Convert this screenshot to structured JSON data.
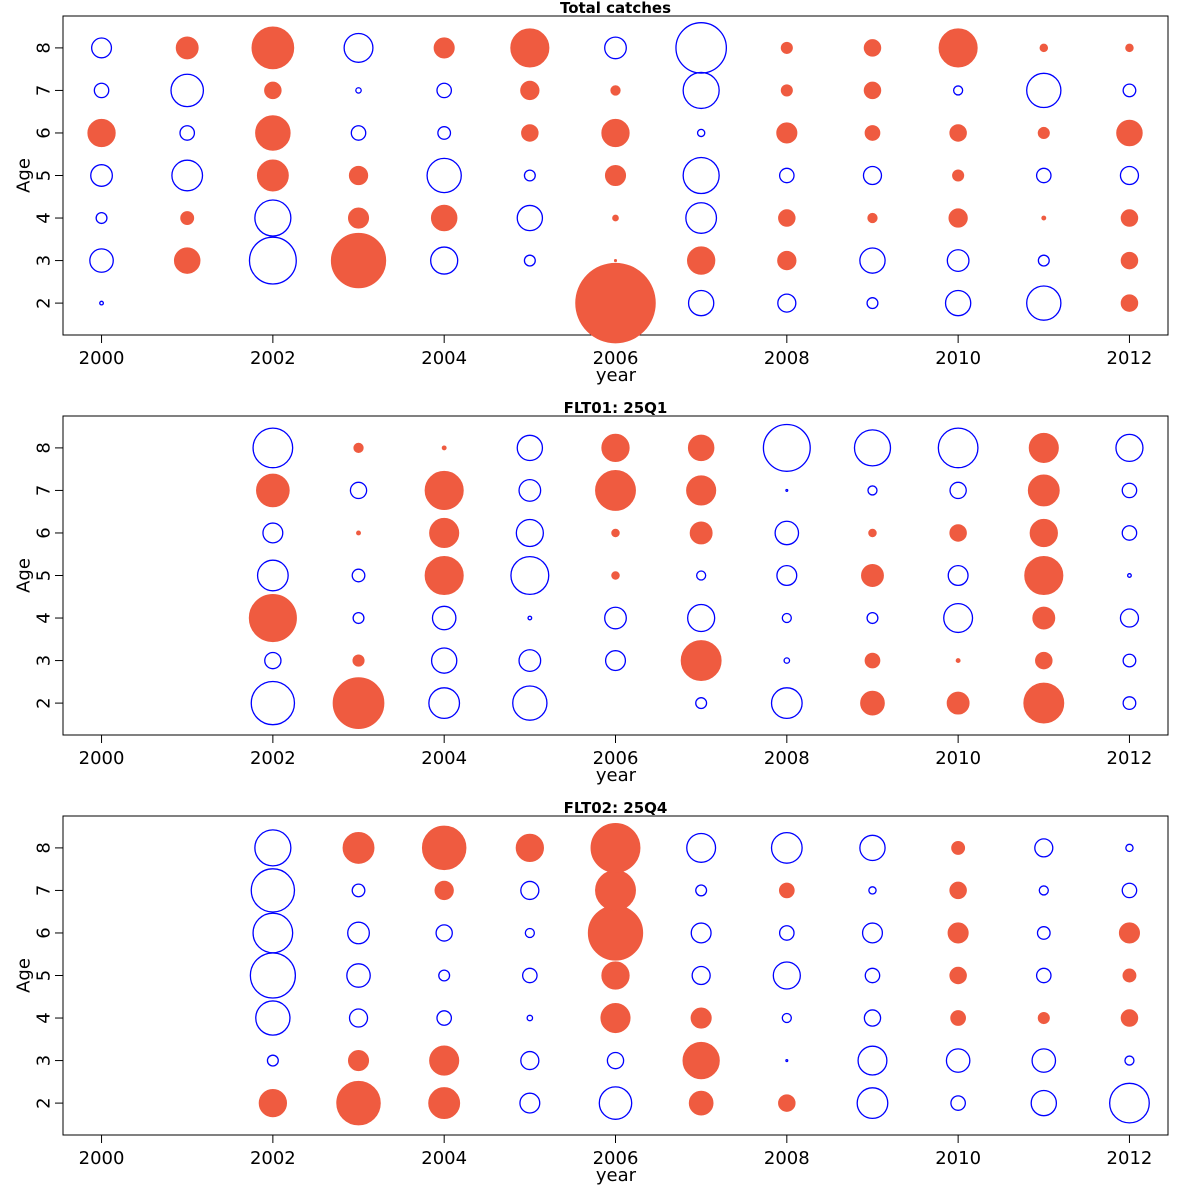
{
  "colors": {
    "positive": "#ef5b40",
    "negative": "#0000ff",
    "frame": "#000000"
  },
  "chart_data": [
    {
      "type": "scatter",
      "subtype": "bubble",
      "title": "Total catches",
      "xlabel": "year",
      "ylabel": "Age",
      "xlim": [
        1999.55,
        2012.45
      ],
      "ylim": [
        1.25,
        8.75
      ],
      "xticks": [
        "2000",
        "2002",
        "2004",
        "2006",
        "2008",
        "2010",
        "2012"
      ],
      "yticks": [
        "2",
        "3",
        "4",
        "5",
        "6",
        "7",
        "8"
      ],
      "years": [
        2000,
        2001,
        2002,
        2003,
        2004,
        2005,
        2006,
        2007,
        2008,
        2009,
        2010,
        2011,
        2012
      ],
      "ages": [
        2,
        3,
        4,
        5,
        6,
        7,
        8
      ],
      "residuals": {
        "2": [
          -0.1,
          null,
          null,
          null,
          null,
          null,
          2.2,
          -0.7,
          -0.5,
          -0.3,
          -0.7,
          -0.95,
          0.45
        ],
        "3": [
          -0.65,
          0.7,
          -1.3,
          1.5,
          -0.75,
          -0.3,
          0.05,
          0.75,
          0.5,
          -0.7,
          -0.6,
          -0.3,
          0.45
        ],
        "4": [
          -0.3,
          0.35,
          -1.0,
          0.55,
          0.7,
          -0.7,
          0.15,
          -0.85,
          0.45,
          0.25,
          0.5,
          0.1,
          0.45
        ],
        "5": [
          -0.6,
          -0.85,
          0.85,
          0.5,
          -0.95,
          -0.3,
          0.55,
          -1.0,
          -0.4,
          -0.5,
          0.3,
          -0.4,
          -0.5
        ],
        "6": [
          0.75,
          -0.4,
          0.95,
          -0.4,
          -0.35,
          0.45,
          0.75,
          -0.2,
          0.55,
          0.4,
          0.45,
          0.3,
          0.7
        ],
        "7": [
          -0.4,
          -0.9,
          0.45,
          -0.15,
          -0.4,
          0.5,
          0.25,
          -1.0,
          0.3,
          0.45,
          -0.25,
          -0.95,
          -0.35
        ],
        "8": [
          -0.55,
          0.6,
          1.15,
          -0.8,
          0.55,
          1.05,
          -0.6,
          -1.4,
          0.3,
          0.45,
          1.05,
          0.2,
          0.2
        ]
      }
    },
    {
      "type": "scatter",
      "subtype": "bubble",
      "title": "FLT01: 25Q1",
      "xlabel": "year",
      "ylabel": "Age",
      "xlim": [
        1999.55,
        2012.45
      ],
      "ylim": [
        1.25,
        8.75
      ],
      "xticks": [
        "2000",
        "2002",
        "2004",
        "2006",
        "2008",
        "2010",
        "2012"
      ],
      "yticks": [
        "2",
        "3",
        "4",
        "5",
        "6",
        "7",
        "8"
      ],
      "years": [
        2000,
        2001,
        2002,
        2003,
        2004,
        2005,
        2006,
        2007,
        2008,
        2009,
        2010,
        2011,
        2012
      ],
      "ages": [
        2,
        3,
        4,
        5,
        6,
        7,
        8
      ],
      "residuals": {
        "2": [
          null,
          null,
          -1.2,
          1.4,
          -0.85,
          -0.95,
          null,
          -0.3,
          -0.85,
          0.65,
          0.6,
          1.1,
          -0.35
        ],
        "3": [
          null,
          null,
          -0.45,
          0.3,
          -0.7,
          -0.6,
          -0.55,
          1.1,
          -0.15,
          0.4,
          0.1,
          0.45,
          -0.35
        ],
        "4": [
          null,
          null,
          1.3,
          -0.3,
          -0.65,
          -0.1,
          -0.6,
          -0.75,
          -0.25,
          -0.3,
          -0.8,
          0.6,
          -0.5
        ],
        "5": [
          null,
          null,
          -0.85,
          -0.35,
          1.05,
          -1.05,
          0.2,
          -0.25,
          -0.55,
          0.6,
          -0.55,
          1.05,
          -0.1
        ],
        "6": [
          null,
          null,
          -0.55,
          0.1,
          0.8,
          -0.75,
          0.2,
          0.6,
          -0.65,
          0.2,
          0.45,
          0.75,
          -0.4
        ],
        "7": [
          null,
          null,
          0.9,
          -0.45,
          1.05,
          -0.6,
          1.1,
          0.8,
          -0.05,
          -0.25,
          -0.45,
          0.85,
          -0.4
        ],
        "8": [
          null,
          null,
          -1.1,
          0.25,
          0.1,
          -0.7,
          0.75,
          0.7,
          -1.3,
          -1.0,
          -1.1,
          0.8,
          -0.75
        ]
      }
    },
    {
      "type": "scatter",
      "subtype": "bubble",
      "title": "FLT02: 25Q4",
      "xlabel": "year",
      "ylabel": "Age",
      "xlim": [
        1999.55,
        2012.45
      ],
      "ylim": [
        1.25,
        8.75
      ],
      "xticks": [
        "2000",
        "2002",
        "2004",
        "2006",
        "2008",
        "2010",
        "2012"
      ],
      "yticks": [
        "2",
        "3",
        "4",
        "5",
        "6",
        "7",
        "8"
      ],
      "years": [
        2000,
        2001,
        2002,
        2003,
        2004,
        2005,
        2006,
        2007,
        2008,
        2009,
        2010,
        2011,
        2012
      ],
      "ages": [
        2,
        3,
        4,
        5,
        6,
        7,
        8
      ],
      "residuals": {
        "2": [
          null,
          null,
          0.75,
          1.2,
          0.85,
          -0.55,
          -0.9,
          0.65,
          0.45,
          -0.85,
          -0.4,
          -0.7,
          -1.1
        ],
        "3": [
          null,
          null,
          -0.3,
          0.55,
          0.8,
          -0.5,
          -0.45,
          1.0,
          -0.05,
          -0.8,
          -0.65,
          -0.65,
          -0.25
        ],
        "4": [
          null,
          null,
          -0.95,
          -0.5,
          -0.4,
          -0.15,
          0.8,
          0.55,
          -0.25,
          -0.45,
          0.4,
          0.3,
          0.45
        ],
        "5": [
          null,
          null,
          -1.25,
          -0.65,
          -0.3,
          -0.4,
          0.75,
          -0.5,
          -0.75,
          -0.4,
          0.45,
          -0.4,
          0.35
        ],
        "6": [
          null,
          null,
          -1.1,
          -0.6,
          -0.45,
          -0.25,
          1.5,
          -0.55,
          -0.4,
          -0.55,
          0.55,
          -0.35,
          0.55
        ],
        "7": [
          null,
          null,
          -1.2,
          -0.35,
          0.5,
          -0.5,
          1.1,
          -0.3,
          0.4,
          -0.2,
          0.45,
          -0.25,
          -0.4
        ],
        "8": [
          null,
          null,
          -1.0,
          0.85,
          1.2,
          0.75,
          1.35,
          -0.8,
          -0.85,
          -0.7,
          0.35,
          -0.5,
          -0.2
        ]
      }
    }
  ]
}
